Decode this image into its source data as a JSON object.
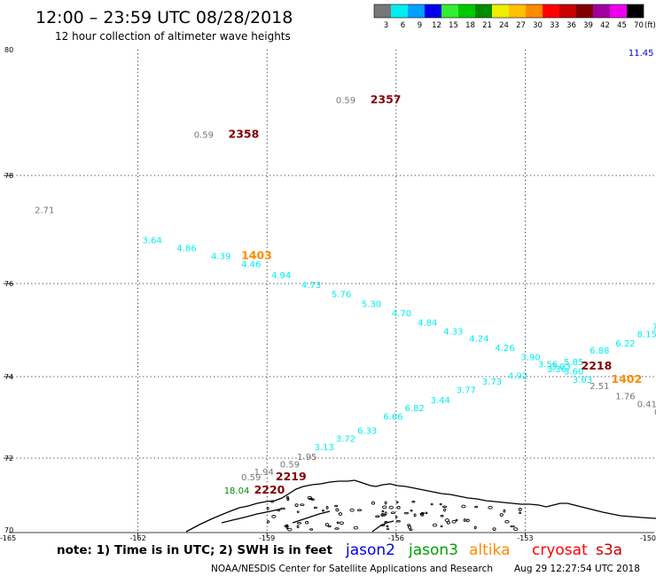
{
  "header": {
    "title": "12:00 – 23:59 UTC 08/28/2018",
    "subtitle": "12 hour collection of altimeter wave heights"
  },
  "legend": {
    "unit": "(ft)",
    "bins": [
      {
        "label": "3",
        "color": "#777777"
      },
      {
        "label": "6",
        "color": "#00eeee"
      },
      {
        "label": "9",
        "color": "#00a0ff"
      },
      {
        "label": "12",
        "color": "#0000ee"
      },
      {
        "label": "15",
        "color": "#33ee33"
      },
      {
        "label": "18",
        "color": "#00c800"
      },
      {
        "label": "21",
        "color": "#008a00"
      },
      {
        "label": "24",
        "color": "#eeee00"
      },
      {
        "label": "27",
        "color": "#ffc000"
      },
      {
        "label": "30",
        "color": "#ff8a00"
      },
      {
        "label": "33",
        "color": "#ff0000"
      },
      {
        "label": "36",
        "color": "#c80000"
      },
      {
        "label": "39",
        "color": "#800000"
      },
      {
        "label": "42",
        "color": "#a000a0"
      },
      {
        "label": "45",
        "color": "#ee00ee"
      },
      {
        "label": "70",
        "color": "#000000"
      }
    ]
  },
  "map": {
    "lat_range": [
      70,
      80
    ],
    "lon_range": [
      -165,
      -150
    ],
    "lat_labels": [
      "80",
      "78",
      "76",
      "74",
      "72",
      "70"
    ],
    "lon_labels": [
      "-162",
      "-159",
      "-156",
      "-153"
    ],
    "corner_labels": {
      "bottom_left": "-165",
      "bottom_right": "-150"
    },
    "grid": "dotted"
  },
  "altimeter_values": [
    {
      "text": "11.45",
      "lon": -150.6,
      "lat": 79.9,
      "color": "#0000ee"
    },
    {
      "text": "0.59",
      "lon": -157.4,
      "lat": 79.15,
      "color": "#777777"
    },
    {
      "text": "2357",
      "lon": -156.6,
      "lat": 79.15,
      "color": "#800000"
    },
    {
      "text": "0.59",
      "lon": -160.7,
      "lat": 78.6,
      "color": "#777777"
    },
    {
      "text": "2358",
      "lon": -159.9,
      "lat": 78.6,
      "color": "#800000"
    },
    {
      "text": "2.71",
      "lon": -164.4,
      "lat": 77.3,
      "color": "#777777"
    },
    {
      "text": "3.64",
      "lon": -161.9,
      "lat": 76.75,
      "color": "#00eeee"
    },
    {
      "text": "4.86",
      "lon": -161.1,
      "lat": 76.6,
      "color": "#00eeee"
    },
    {
      "text": "4.39",
      "lon": -160.3,
      "lat": 76.45,
      "color": "#00eeee"
    },
    {
      "text": "1403",
      "lon": -159.6,
      "lat": 76.45,
      "color": "#ff8a00"
    },
    {
      "text": "4.46",
      "lon": -159.6,
      "lat": 76.3,
      "color": "#00eeee"
    },
    {
      "text": "4.94",
      "lon": -158.9,
      "lat": 76.1,
      "color": "#00eeee"
    },
    {
      "text": "4.73",
      "lon": -158.2,
      "lat": 75.9,
      "color": "#00eeee"
    },
    {
      "text": "5.76",
      "lon": -157.5,
      "lat": 75.7,
      "color": "#00eeee"
    },
    {
      "text": "5.30",
      "lon": -156.8,
      "lat": 75.5,
      "color": "#00eeee"
    },
    {
      "text": "4.70",
      "lon": -156.1,
      "lat": 75.3,
      "color": "#00eeee"
    },
    {
      "text": "4.84",
      "lon": -155.5,
      "lat": 75.1,
      "color": "#00eeee"
    },
    {
      "text": "4.33",
      "lon": -154.9,
      "lat": 74.9,
      "color": "#00eeee"
    },
    {
      "text": "4.24",
      "lon": -154.3,
      "lat": 74.75,
      "color": "#00eeee"
    },
    {
      "text": "4.26",
      "lon": -153.7,
      "lat": 74.55,
      "color": "#00eeee"
    },
    {
      "text": "3.90",
      "lon": -153.1,
      "lat": 74.35,
      "color": "#00eeee"
    },
    {
      "text": "3.56",
      "lon": -152.7,
      "lat": 74.2,
      "color": "#00eeee"
    },
    {
      "text": "3.03",
      "lon": -152.4,
      "lat": 74.15,
      "color": "#00eeee"
    },
    {
      "text": "3.36",
      "lon": -152.5,
      "lat": 74.1,
      "color": "#00eeee"
    },
    {
      "text": "3.60",
      "lon": -152.1,
      "lat": 74.05,
      "color": "#00eeee"
    },
    {
      "text": "5.85",
      "lon": -152.1,
      "lat": 74.25,
      "color": "#00eeee"
    },
    {
      "text": "2218",
      "lon": -151.7,
      "lat": 74.15,
      "color": "#800000"
    },
    {
      "text": "6.88",
      "lon": -151.5,
      "lat": 74.5,
      "color": "#00eeee"
    },
    {
      "text": "6.22",
      "lon": -150.9,
      "lat": 74.65,
      "color": "#00eeee"
    },
    {
      "text": "8.15",
      "lon": -150.4,
      "lat": 74.85,
      "color": "#00eeee"
    },
    {
      "text": "7",
      "lon": -150.05,
      "lat": 75.0,
      "color": "#00eeee"
    },
    {
      "text": "3.03",
      "lon": -151.9,
      "lat": 73.85,
      "color": "#00eeee"
    },
    {
      "text": "1402",
      "lon": -151.0,
      "lat": 73.85,
      "color": "#ff8a00"
    },
    {
      "text": "2.51",
      "lon": -151.5,
      "lat": 73.7,
      "color": "#777777"
    },
    {
      "text": "1.76",
      "lon": -150.9,
      "lat": 73.45,
      "color": "#777777"
    },
    {
      "text": "0.41",
      "lon": -150.4,
      "lat": 73.25,
      "color": "#777777"
    },
    {
      "text": "0",
      "lon": -150.0,
      "lat": 73.05,
      "color": "#777777"
    },
    {
      "text": "4.92",
      "lon": -153.4,
      "lat": 73.95,
      "color": "#00eeee"
    },
    {
      "text": "3.73",
      "lon": -154.0,
      "lat": 73.8,
      "color": "#00eeee"
    },
    {
      "text": "3.77",
      "lon": -154.6,
      "lat": 73.6,
      "color": "#00eeee"
    },
    {
      "text": "3.44",
      "lon": -155.2,
      "lat": 73.35,
      "color": "#00eeee"
    },
    {
      "text": "6.82",
      "lon": -155.8,
      "lat": 73.15,
      "color": "#00eeee"
    },
    {
      "text": "6.66",
      "lon": -156.3,
      "lat": 72.95,
      "color": "#00eeee"
    },
    {
      "text": "6.33",
      "lon": -156.9,
      "lat": 72.6,
      "color": "#00eeee"
    },
    {
      "text": "3.72",
      "lon": -157.4,
      "lat": 72.4,
      "color": "#00eeee"
    },
    {
      "text": "3.13",
      "lon": -157.9,
      "lat": 72.2,
      "color": "#00eeee"
    },
    {
      "text": "1.95",
      "lon": -158.3,
      "lat": 71.95,
      "color": "#777777"
    },
    {
      "text": "0.59",
      "lon": -158.7,
      "lat": 71.75,
      "color": "#777777"
    },
    {
      "text": "1.94",
      "lon": -159.3,
      "lat": 71.55,
      "color": "#777777"
    },
    {
      "text": "0.59",
      "lon": -159.6,
      "lat": 71.4,
      "color": "#777777"
    },
    {
      "text": "2219",
      "lon": -158.8,
      "lat": 71.4,
      "color": "#800000"
    },
    {
      "text": "18.04",
      "lon": -160.0,
      "lat": 71.05,
      "color": "#008a00"
    },
    {
      "text": "2220",
      "lon": -159.3,
      "lat": 71.05,
      "color": "#800000"
    }
  ],
  "footer": {
    "note": "note: 1) Time is in UTC; 2) SWH is in feet",
    "satellites": [
      {
        "name": "jason2",
        "color": "#0000ee"
      },
      {
        "name": "jason3",
        "color": "#00a000"
      },
      {
        "name": "altika",
        "color": "#ff8a00"
      },
      {
        "name": "cryosat",
        "color": "#ff0000"
      },
      {
        "name": "s3a",
        "color": "#c80000"
      }
    ],
    "credit": "NOAA/NESDIS Center for Satellite Applications and Research",
    "generated": "Aug 29 12:27:54 UTC 2018"
  }
}
